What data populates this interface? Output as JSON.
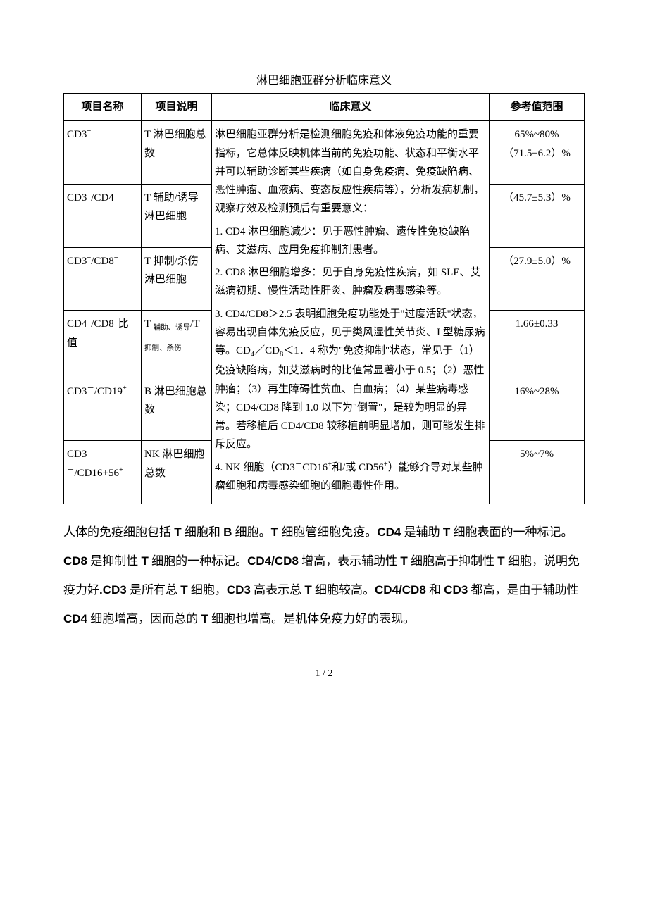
{
  "title": "淋巴细胞亚群分析临床意义",
  "headers": {
    "name": "项目名称",
    "desc": "项目说明",
    "meaning": "临床意义",
    "ref": "参考值范围"
  },
  "rows": [
    {
      "name_html": "CD3<sup>+</sup>",
      "desc": "T 淋巴细胞总数",
      "ref_line1": "65%~80%",
      "ref_line2": "（71.5±6.2）%"
    },
    {
      "name_html": "CD3<sup>+</sup>/CD4<sup>+</sup>",
      "desc": "T 辅助/诱导淋巴细胞",
      "ref_line1": "（45.7±5.3）%",
      "ref_line2": ""
    },
    {
      "name_html": "CD3<sup>+</sup>/CD8<sup>+</sup>",
      "desc": "T 抑制/杀伤淋巴细胞",
      "ref_line1": "（27.9±5.0）%",
      "ref_line2": ""
    },
    {
      "name_html": "CD4<sup>+</sup>/CD8<sup>+</sup>比值",
      "desc_html": "T <span class=\"sub-small\">辅助、诱导</span>/T <span class=\"sub-small\">抑制、杀伤</span>",
      "ref_line1": "1.66±0.33",
      "ref_line2": ""
    },
    {
      "name_html": "CD3<sup>－</sup>/CD19<sup>+</sup>",
      "desc": "B 淋巴细胞总数",
      "ref_line1": "16%~28%",
      "ref_line2": ""
    },
    {
      "name_html": "CD3<sup>－</sup>/CD16+56<sup>+</sup>",
      "desc": "NK 淋巴细胞总数",
      "ref_line1": "5%~7%",
      "ref_line2": ""
    }
  ],
  "meaning_html": "<p>淋巴细胞亚群分析是检测细胞免疫和体液免疫功能的重要指标，它总体反映机体当前的免疫功能、状态和平衡水平并可以辅助诊断某些疾病（如自身免疫病、免疫缺陷病、恶性肿瘤、血液病、变态反应性疾病等），分析发病机制，观察疗效及检测预后有重要意义：</p><p>1. CD4 淋巴细胞减少：见于恶性肿瘤、遗传性免疫缺陷病、艾滋病、应用免疫抑制剂患者。</p><p>2. CD8 淋巴细胞增多：见于自身免疫性疾病，如 SLE、艾滋病初期、慢性活动性肝炎、肿瘤及病毒感染等。</p><p>3. CD4/CD8＞2.5 表明细胞免疫功能处于\"过度活跃\"状态，容易出现自体免疫反应，见于类风湿性关节炎、I 型糖尿病等。CD<sub>4</sub>／CD<sub>8</sub>＜1．4 称为\"免疫抑制\"状态，常见于（1）免疫缺陷病，如艾滋病时的比值常显著小于 0.5；（2）恶性肿瘤；（3）再生障碍性贫血、白血病；（4）某些病毒感染；CD4/CD8 降到 1.0 以下为\"倒置\"，是较为明显的异常。若移植后 CD4/CD8 较移植前明显增加，则可能发生排斥反应。</p><p>4. NK 细胞（CD3<sup>－</sup>CD16<sup>+</sup>和/或 CD56<sup>+</sup>）能够介导对某些肿瘤细胞和病毒感染细胞的细胞毒性作用。</p>",
  "paragraph_html": "人体的免疫细胞包括 <span class=\"bold\">T</span> 细胞和 <span class=\"bold\">B</span> 细胞。<span class=\"bold\">T</span> 细胞管细胞免疫。<span class=\"bold\">CD4</span> 是辅助 <span class=\"bold\">T</span> 细胞表面的一种标记。<span class=\"bold\">CD8</span> 是抑制性 <span class=\"bold\">T</span> 细胞的一种标记。<span class=\"bold\">CD4/CD8</span> 增高，表示辅助性 <span class=\"bold\">T</span> 细胞高于抑制性 <span class=\"bold\">T</span> 细胞，说明免疫力好<span class=\"bold\">.CD3</span> 是所有总 <span class=\"bold\">T</span> 细胞，<span class=\"bold\">CD3</span> 高表示总 <span class=\"bold\">T</span> 细胞较高。<span class=\"bold\">CD4/CD8</span> 和 <span class=\"bold\">CD3</span> 都高，是由于辅助性 <span class=\"bold\">CD4</span> 细胞增高，因而总的 <span class=\"bold\">T</span> 细胞也增高。是机体免疫力好的表现。",
  "footer": "1 / 2"
}
